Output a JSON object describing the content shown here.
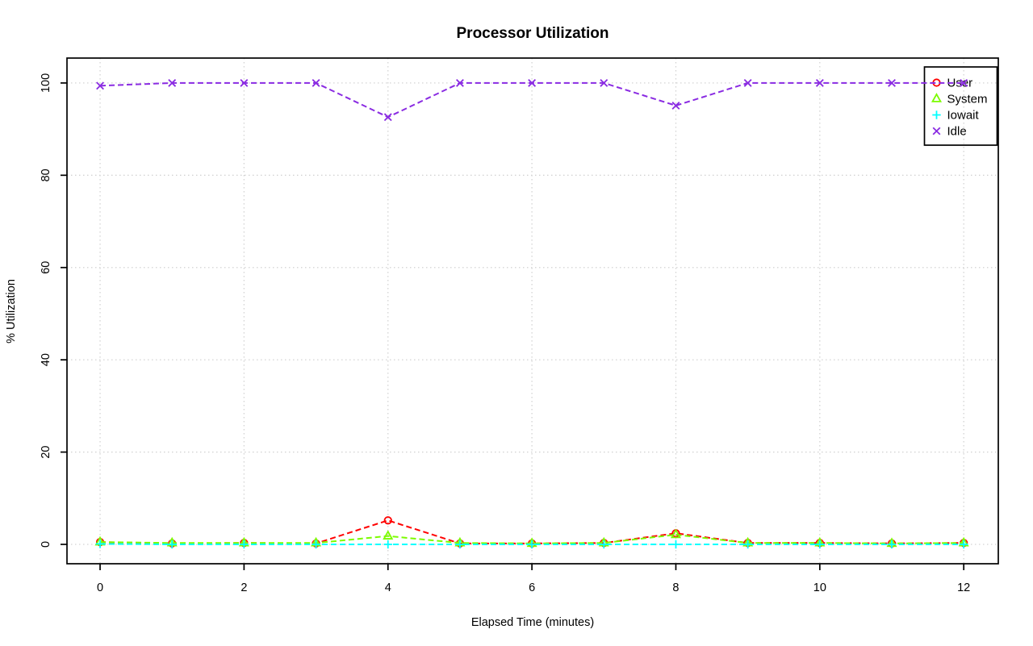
{
  "chart_data": {
    "type": "line",
    "title": "Processor Utilization",
    "xlabel": "Elapsed Time (minutes)",
    "ylabel": "% Utilization",
    "x": [
      0,
      1,
      2,
      3,
      4,
      5,
      6,
      7,
      8,
      9,
      10,
      11,
      12
    ],
    "x_ticks": [
      0,
      2,
      4,
      6,
      8,
      10,
      12
    ],
    "y_ticks": [
      0,
      20,
      40,
      60,
      80,
      100
    ],
    "xlim": [
      -0.46,
      12.48
    ],
    "ylim": [
      -4.2,
      105.4
    ],
    "grid": true,
    "grid_color": "#d3d3d3",
    "axis_color": "#000000",
    "legend_position": "top-right",
    "line_style": "dashed",
    "series": [
      {
        "name": "User",
        "color": "#ff0000",
        "marker": "circle",
        "values": [
          0.5,
          0.2,
          0.3,
          0.2,
          5.2,
          0.2,
          0.2,
          0.3,
          2.4,
          0.3,
          0.3,
          0.2,
          0.3
        ]
      },
      {
        "name": "System",
        "color": "#7cfc00",
        "marker": "triangle",
        "values": [
          0.5,
          0.3,
          0.3,
          0.3,
          1.8,
          0.3,
          0.2,
          0.3,
          2.1,
          0.3,
          0.3,
          0.2,
          0.3
        ]
      },
      {
        "name": "Iowait",
        "color": "#00ffff",
        "marker": "plus",
        "values": [
          0.1,
          0.0,
          0.0,
          0.0,
          0.0,
          0.0,
          0.0,
          0.0,
          0.0,
          0.0,
          0.0,
          0.0,
          0.0
        ]
      },
      {
        "name": "Idle",
        "color": "#8a2be2",
        "marker": "x",
        "values": [
          99.4,
          100,
          100,
          100,
          92.6,
          100,
          100,
          100,
          95.1,
          100,
          100,
          100,
          100
        ]
      }
    ]
  }
}
